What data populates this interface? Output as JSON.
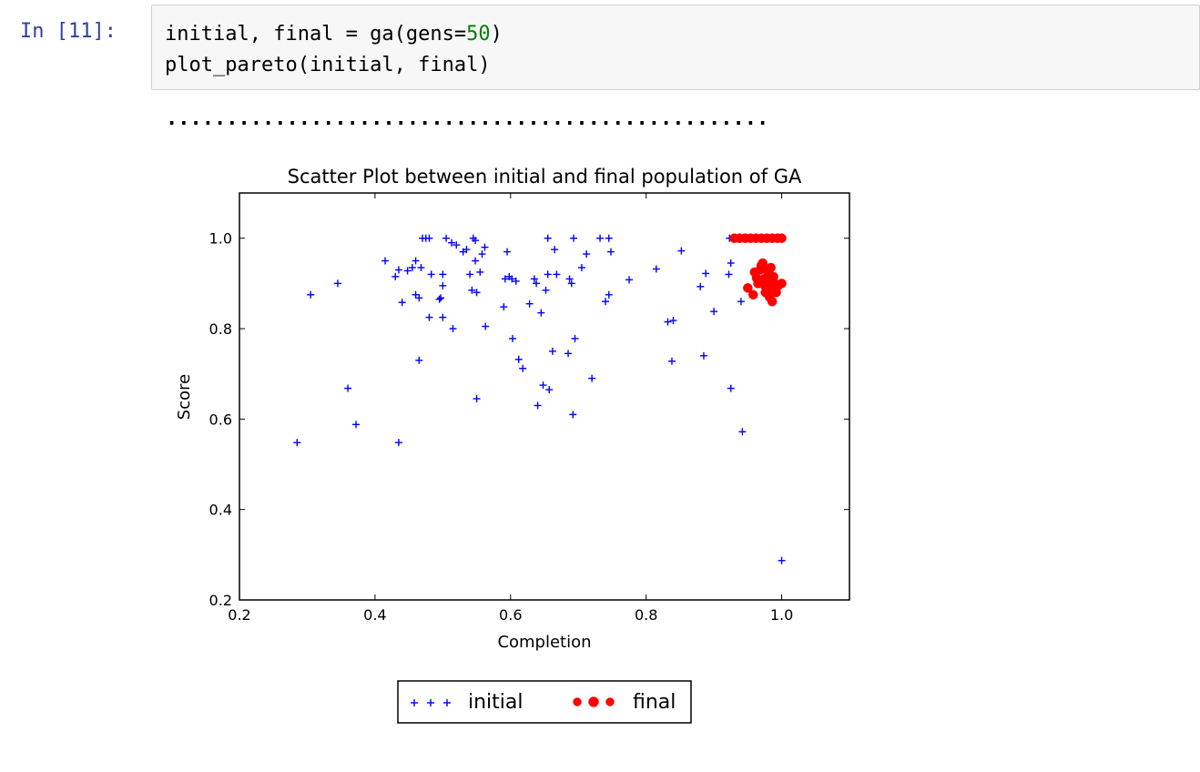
{
  "cell": {
    "prompt": "In [11]:",
    "code_line1_a": "initial, final = ga(gens=",
    "code_line1_num": "50",
    "code_line1_b": ")",
    "code_line2": "plot_pareto(initial, final)"
  },
  "output": {
    "progress_text": ".................................................."
  },
  "colors": {
    "initial": "#0000ff",
    "final": "#ff0000",
    "prompt": "#303f9f",
    "number": "#008000"
  },
  "chart_data": {
    "type": "scatter",
    "title": "Scatter Plot between initial and final population of GA",
    "xlabel": "Completion",
    "ylabel": "Score",
    "xlim": [
      0.2,
      1.1
    ],
    "ylim": [
      0.2,
      1.1
    ],
    "xticks": [
      "0.2",
      "0.4",
      "0.6",
      "0.8",
      "1.0"
    ],
    "yticks": [
      "0.2",
      "0.4",
      "0.6",
      "0.8",
      "1.0"
    ],
    "grid": false,
    "legend_placement": "below",
    "series": [
      {
        "name": "initial",
        "marker": "+",
        "points": [
          [
            0.285,
            0.548
          ],
          [
            0.305,
            0.875
          ],
          [
            0.345,
            0.9
          ],
          [
            0.36,
            0.668
          ],
          [
            0.372,
            0.588
          ],
          [
            0.415,
            0.95
          ],
          [
            0.43,
            0.915
          ],
          [
            0.435,
            0.548
          ],
          [
            0.435,
            0.93
          ],
          [
            0.44,
            0.858
          ],
          [
            0.448,
            0.928
          ],
          [
            0.455,
            0.935
          ],
          [
            0.46,
            0.875
          ],
          [
            0.46,
            0.95
          ],
          [
            0.465,
            0.868
          ],
          [
            0.465,
            0.73
          ],
          [
            0.468,
            0.935
          ],
          [
            0.47,
            1.0
          ],
          [
            0.475,
            1.0
          ],
          [
            0.48,
            1.0
          ],
          [
            0.48,
            0.825
          ],
          [
            0.483,
            0.92
          ],
          [
            0.495,
            0.865
          ],
          [
            0.497,
            0.868
          ],
          [
            0.5,
            0.92
          ],
          [
            0.5,
            0.895
          ],
          [
            0.5,
            0.825
          ],
          [
            0.505,
            1.0
          ],
          [
            0.513,
            0.99
          ],
          [
            0.515,
            0.8
          ],
          [
            0.52,
            0.985
          ],
          [
            0.53,
            0.97
          ],
          [
            0.535,
            0.975
          ],
          [
            0.54,
            0.92
          ],
          [
            0.543,
            0.885
          ],
          [
            0.545,
            1.0
          ],
          [
            0.548,
            0.995
          ],
          [
            0.548,
            0.95
          ],
          [
            0.55,
            0.645
          ],
          [
            0.55,
            0.88
          ],
          [
            0.555,
            0.925
          ],
          [
            0.558,
            0.965
          ],
          [
            0.562,
            0.98
          ],
          [
            0.563,
            0.805
          ],
          [
            0.59,
            0.848
          ],
          [
            0.592,
            0.91
          ],
          [
            0.595,
            0.97
          ],
          [
            0.598,
            0.915
          ],
          [
            0.602,
            0.91
          ],
          [
            0.603,
            0.778
          ],
          [
            0.608,
            0.905
          ],
          [
            0.612,
            0.732
          ],
          [
            0.618,
            0.712
          ],
          [
            0.628,
            0.855
          ],
          [
            0.635,
            0.91
          ],
          [
            0.638,
            0.9
          ],
          [
            0.64,
            0.63
          ],
          [
            0.645,
            0.835
          ],
          [
            0.648,
            0.675
          ],
          [
            0.652,
            0.885
          ],
          [
            0.655,
            1.0
          ],
          [
            0.655,
            0.92
          ],
          [
            0.657,
            0.665
          ],
          [
            0.662,
            0.75
          ],
          [
            0.665,
            0.975
          ],
          [
            0.668,
            0.92
          ],
          [
            0.685,
            0.745
          ],
          [
            0.687,
            0.91
          ],
          [
            0.69,
            0.9
          ],
          [
            0.692,
            0.61
          ],
          [
            0.693,
            1.0
          ],
          [
            0.695,
            0.778
          ],
          [
            0.705,
            0.935
          ],
          [
            0.712,
            0.965
          ],
          [
            0.72,
            0.69
          ],
          [
            0.732,
            1.0
          ],
          [
            0.74,
            0.86
          ],
          [
            0.745,
            0.875
          ],
          [
            0.745,
            1.0
          ],
          [
            0.748,
            0.97
          ],
          [
            0.775,
            0.908
          ],
          [
            0.815,
            0.932
          ],
          [
            0.832,
            0.815
          ],
          [
            0.838,
            0.728
          ],
          [
            0.84,
            0.818
          ],
          [
            0.852,
            0.972
          ],
          [
            0.88,
            0.893
          ],
          [
            0.885,
            0.74
          ],
          [
            0.888,
            0.922
          ],
          [
            0.9,
            0.838
          ],
          [
            0.922,
            0.92
          ],
          [
            0.923,
            1.0
          ],
          [
            0.925,
            0.945
          ],
          [
            0.925,
            0.668
          ],
          [
            0.94,
            0.86
          ],
          [
            0.942,
            0.572
          ],
          [
            1.0,
            0.287
          ]
        ]
      },
      {
        "name": "final",
        "marker": "o",
        "points": [
          [
            0.93,
            1.0
          ],
          [
            0.938,
            1.0
          ],
          [
            0.946,
            1.0
          ],
          [
            0.954,
            1.0
          ],
          [
            0.962,
            1.0
          ],
          [
            0.97,
            1.0
          ],
          [
            0.978,
            1.0
          ],
          [
            0.986,
            1.0
          ],
          [
            0.994,
            1.0
          ],
          [
            1.0,
            1.0
          ],
          [
            0.95,
            0.89
          ],
          [
            0.958,
            0.875
          ],
          [
            0.96,
            0.925
          ],
          [
            0.963,
            0.912
          ],
          [
            0.965,
            0.9
          ],
          [
            0.968,
            0.93
          ],
          [
            0.97,
            0.94
          ],
          [
            0.972,
            0.945
          ],
          [
            0.974,
            0.91
          ],
          [
            0.975,
            0.895
          ],
          [
            0.976,
            0.88
          ],
          [
            0.978,
            0.932
          ],
          [
            0.98,
            0.92
          ],
          [
            0.981,
            0.905
          ],
          [
            0.982,
            0.87
          ],
          [
            0.984,
            0.935
          ],
          [
            0.985,
            0.89
          ],
          [
            0.986,
            0.86
          ],
          [
            0.988,
            0.915
          ],
          [
            0.99,
            0.9
          ],
          [
            0.992,
            0.88
          ],
          [
            0.995,
            0.895
          ],
          [
            1.0,
            0.9
          ]
        ]
      }
    ]
  }
}
